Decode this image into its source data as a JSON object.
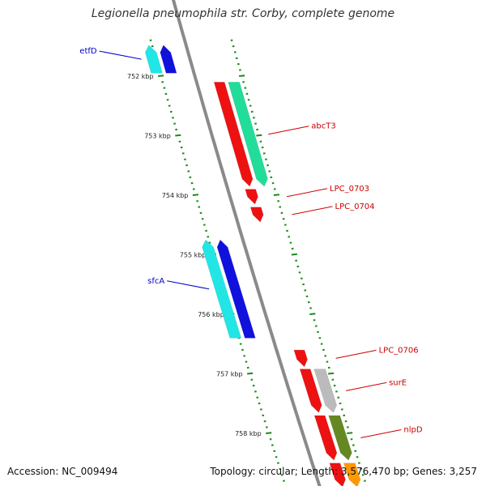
{
  "header": {
    "title": "Legionella pneumophila str. Corby, complete genome"
  },
  "footer": {
    "accession": "Accession: NC_009494",
    "topology": "Topology: circular; Length: 3,576,470 bp; Genes: 3,257"
  },
  "colors": {
    "backbone": "#8a8a8a",
    "tick": "#1a8a1a",
    "forward_label": "#cc0000",
    "reverse_label": "#0000cc",
    "cds": "#ee1111",
    "cog_green": "#22dd99",
    "cog_cyan": "#22e6e6",
    "cog_blue": "#1111dd",
    "cog_grey": "#bbbbbb",
    "cog_olive": "#668822",
    "cog_orange": "#ff9900"
  },
  "ticks": [
    "752 kbp",
    "753 kbp",
    "754 kbp",
    "755 kbp",
    "756 kbp",
    "757 kbp",
    "758 kbp"
  ],
  "features": [
    {
      "name": "etfD",
      "strand": "reverse",
      "start_kbp": 751.48,
      "end_kbp": 751.95,
      "cog": "cog_cyan"
    },
    {
      "name": "abcT3",
      "strand": "forward",
      "start_kbp": 752.1,
      "end_kbp": 753.85,
      "cog": "cog_green"
    },
    {
      "name": "LPC_0703",
      "strand": "forward",
      "start_kbp": 753.9,
      "end_kbp": 754.15,
      "cog": ""
    },
    {
      "name": "LPC_0704",
      "strand": "forward",
      "start_kbp": 754.2,
      "end_kbp": 754.45,
      "cog": ""
    },
    {
      "name": "sfcA",
      "strand": "reverse",
      "start_kbp": 754.75,
      "end_kbp": 756.4,
      "cog": "cog_cyan"
    },
    {
      "name": "LPC_0706",
      "strand": "forward",
      "start_kbp": 756.6,
      "end_kbp": 756.88,
      "cog": ""
    },
    {
      "name": "surE",
      "strand": "forward",
      "start_kbp": 756.92,
      "end_kbp": 757.65,
      "cog": "cog_grey"
    },
    {
      "name": "nlpD",
      "strand": "forward",
      "start_kbp": 757.7,
      "end_kbp": 758.45,
      "cog": "cog_olive"
    },
    {
      "name": "",
      "strand": "forward",
      "start_kbp": 758.5,
      "end_kbp": 758.9,
      "cog": "cog_orange"
    }
  ]
}
